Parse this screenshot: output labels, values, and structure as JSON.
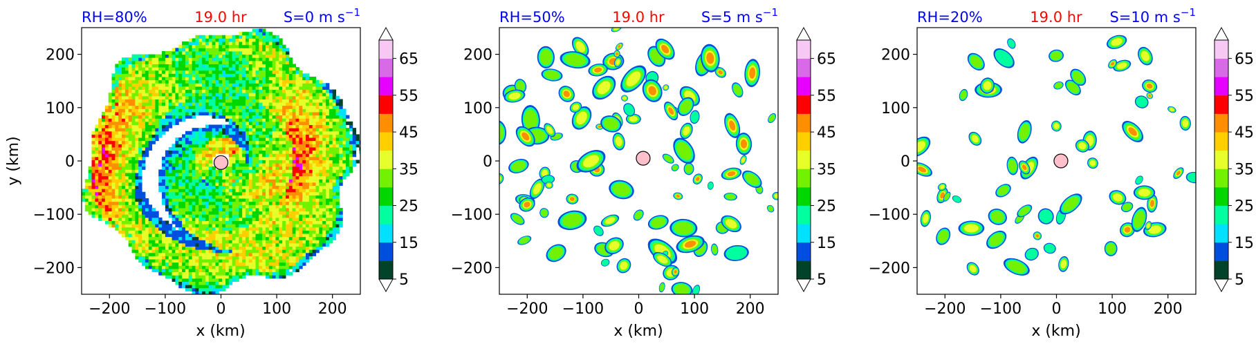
{
  "chart_data": [
    {
      "type": "heatmap",
      "title_left": "RH=80%",
      "title_center": "19.0 hr",
      "title_right": "S=0 m s",
      "title_right_sup": "−1",
      "xlabel": "x (km)",
      "ylabel": "y (km)",
      "xlim": [
        -250,
        250
      ],
      "ylim": [
        -250,
        250
      ],
      "xticks": [
        -200,
        -100,
        0,
        100,
        200
      ],
      "yticks": [
        -200,
        -100,
        0,
        100,
        200
      ],
      "xtick_labels": [
        "−200",
        "−100",
        "0",
        "100",
        "200"
      ],
      "ytick_labels": [
        "−200",
        "−100",
        "0",
        "100",
        "200"
      ],
      "center_marker": [
        0,
        -3
      ],
      "pattern": "spiral",
      "coverage": 0.95,
      "colorbar_ticks": [
        "5",
        "15",
        "25",
        "35",
        "45",
        "55",
        "65"
      ]
    },
    {
      "type": "heatmap",
      "title_left": "RH=50%",
      "title_center": "19.0 hr",
      "title_right": "S=5 m s",
      "title_right_sup": "−1",
      "xlabel": "x (km)",
      "ylabel": "",
      "xlim": [
        -250,
        250
      ],
      "ylim": [
        -250,
        250
      ],
      "xticks": [
        -200,
        -100,
        0,
        100,
        200
      ],
      "yticks": [
        -200,
        -100,
        0,
        100,
        200
      ],
      "xtick_labels": [
        "−200",
        "−100",
        "0",
        "100",
        "200"
      ],
      "ytick_labels": [
        "−200",
        "−100",
        "0",
        "100",
        "200"
      ],
      "center_marker": [
        8,
        5
      ],
      "pattern": "cells",
      "coverage": 0.45,
      "colorbar_ticks": [
        "5",
        "15",
        "25",
        "35",
        "45",
        "55",
        "65"
      ]
    },
    {
      "type": "heatmap",
      "title_left": "RH=20%",
      "title_center": "19.0 hr",
      "title_right": "S=10 m s",
      "title_right_sup": "−1",
      "xlabel": "x (km)",
      "ylabel": "",
      "xlim": [
        -250,
        250
      ],
      "ylim": [
        -250,
        250
      ],
      "xticks": [
        -200,
        -100,
        0,
        100,
        200
      ],
      "yticks": [
        -200,
        -100,
        0,
        100,
        200
      ],
      "xtick_labels": [
        "−200",
        "−100",
        "0",
        "100",
        "200"
      ],
      "ytick_labels": [
        "−200",
        "−100",
        "0",
        "100",
        "200"
      ],
      "center_marker": [
        8,
        0
      ],
      "pattern": "cells",
      "coverage": 0.22,
      "colorbar_ticks": [
        "5",
        "15",
        "25",
        "35",
        "45",
        "55",
        "65"
      ]
    }
  ],
  "colorbar": {
    "levels": [
      5,
      10,
      15,
      20,
      25,
      30,
      35,
      40,
      45,
      50,
      55,
      60,
      65,
      70
    ],
    "colors": [
      "#00432a",
      "#004ee0",
      "#00e1ff",
      "#00ff9e",
      "#00d600",
      "#72f200",
      "#e6ff2b",
      "#ffcf00",
      "#ff8e00",
      "#ff0000",
      "#e500ff",
      "#d86ae8",
      "#f8c8f5"
    ],
    "under_color": "#ffffff",
    "over_color": "#ffffff",
    "extend": "both"
  },
  "styles": {
    "title_side_color": "#0000ff",
    "title_center_color": "#ff0000",
    "marker_color": "#ffc0cb"
  }
}
